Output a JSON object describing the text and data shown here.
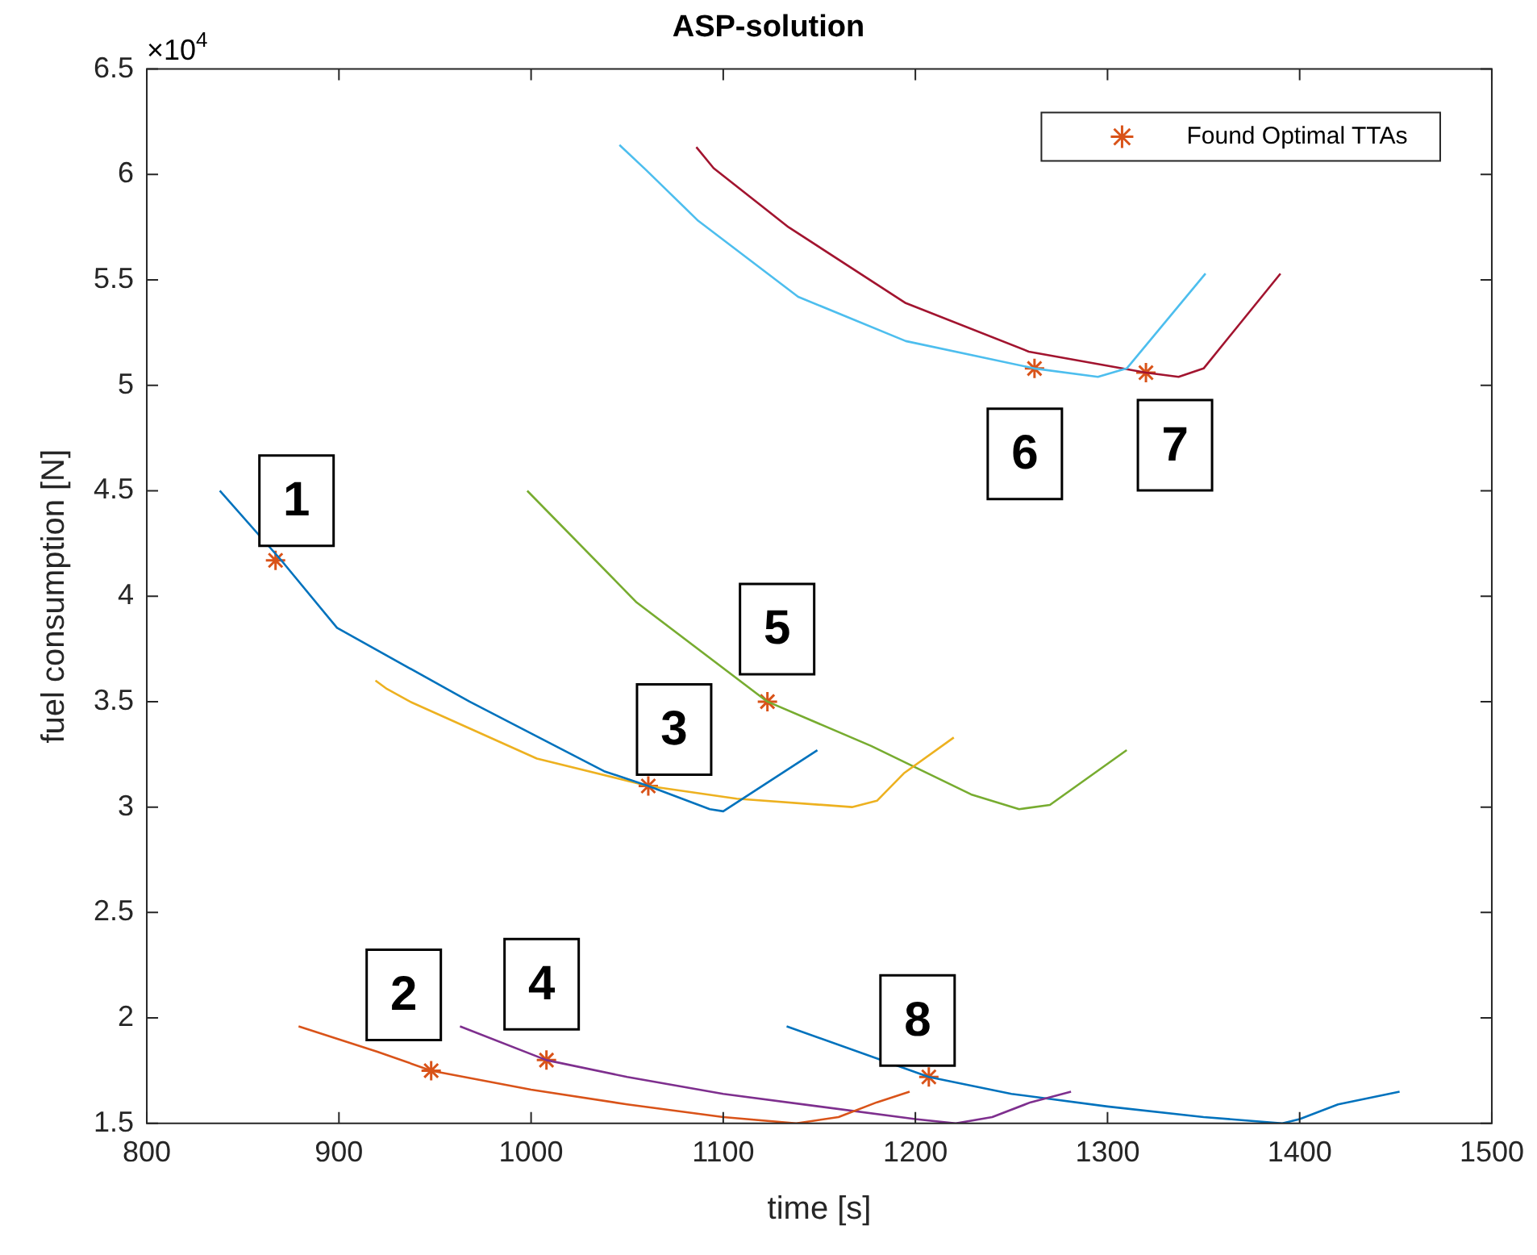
{
  "chart_data": {
    "type": "line",
    "title": "ASP-solution",
    "xlabel": "time [s]",
    "ylabel": "fuel consumption [N]",
    "xlim": [
      800,
      1500
    ],
    "xticks": [
      800,
      900,
      1000,
      1100,
      1200,
      1300,
      1400,
      1500
    ],
    "ylim": [
      1.5,
      6.5
    ],
    "yticks": [
      1.5,
      2,
      2.5,
      3,
      3.5,
      4,
      4.5,
      5,
      5.5,
      6,
      6.5
    ],
    "grid": false,
    "legend": "top right",
    "marker": "none",
    "line_style": "solid",
    "series": [
      {
        "color": "#0072bd",
        "x": [
          838,
          870,
          899,
          968,
          1038,
          1061,
          1093,
          1100,
          1122,
          1149
        ],
        "values": [
          4.5,
          4.17,
          3.85,
          3.5,
          3.17,
          3.1,
          2.99,
          2.98,
          3.11,
          3.27
        ]
      },
      {
        "color": "#d95319",
        "x": [
          879,
          920,
          948,
          1000,
          1050,
          1100,
          1138,
          1160,
          1180,
          1197
        ],
        "values": [
          1.96,
          1.84,
          1.75,
          1.66,
          1.59,
          1.53,
          1.5,
          1.53,
          1.6,
          1.65
        ]
      },
      {
        "color": "#edb120",
        "x": [
          919,
          925,
          937,
          1003,
          1061,
          1107,
          1167,
          1180,
          1194,
          1220
        ],
        "values": [
          3.6,
          3.56,
          3.5,
          3.23,
          3.1,
          3.04,
          3.0,
          3.03,
          3.16,
          3.33
        ]
      },
      {
        "color": "#7e2f8e",
        "x": [
          963,
          1008,
          1050,
          1100,
          1150,
          1200,
          1221,
          1240,
          1260,
          1281
        ],
        "values": [
          1.96,
          1.8,
          1.72,
          1.64,
          1.58,
          1.52,
          1.5,
          1.53,
          1.6,
          1.65
        ]
      },
      {
        "color": "#77ac30",
        "x": [
          998,
          1055,
          1123,
          1177,
          1229,
          1254,
          1270,
          1290,
          1310
        ],
        "values": [
          4.5,
          3.97,
          3.5,
          3.29,
          3.06,
          2.99,
          3.01,
          3.14,
          3.27
        ]
      },
      {
        "color": "#4dbeee",
        "x": [
          1046,
          1060,
          1087,
          1139,
          1195,
          1262,
          1295,
          1310,
          1351
        ],
        "values": [
          6.14,
          6.02,
          5.78,
          5.42,
          5.21,
          5.08,
          5.04,
          5.08,
          5.53
        ]
      },
      {
        "color": "#a2142f",
        "x": [
          1086,
          1095,
          1134,
          1195,
          1259,
          1320,
          1337,
          1350,
          1390
        ],
        "values": [
          6.13,
          6.03,
          5.75,
          5.39,
          5.16,
          5.06,
          5.04,
          5.08,
          5.53
        ]
      },
      {
        "color": "#0072bd",
        "x": [
          1133,
          1207,
          1250,
          1300,
          1350,
          1391,
          1400,
          1420,
          1452
        ],
        "values": [
          1.96,
          1.72,
          1.64,
          1.58,
          1.53,
          1.5,
          1.52,
          1.59,
          1.65
        ]
      },
      {
        "type": "scatter",
        "name": "Found Optimal TTAs",
        "color": "#d95319",
        "marker": "cross",
        "x": [
          867,
          948,
          1061,
          1008,
          1123,
          1262,
          1320,
          1207
        ],
        "values": [
          4.17,
          1.75,
          3.1,
          1.8,
          3.5,
          5.08,
          5.06,
          1.72
        ]
      }
    ],
    "annotations": [
      "×10$^{4}$",
      "1",
      "2",
      "3",
      "4",
      "5",
      "6",
      "7",
      "8"
    ]
  }
}
